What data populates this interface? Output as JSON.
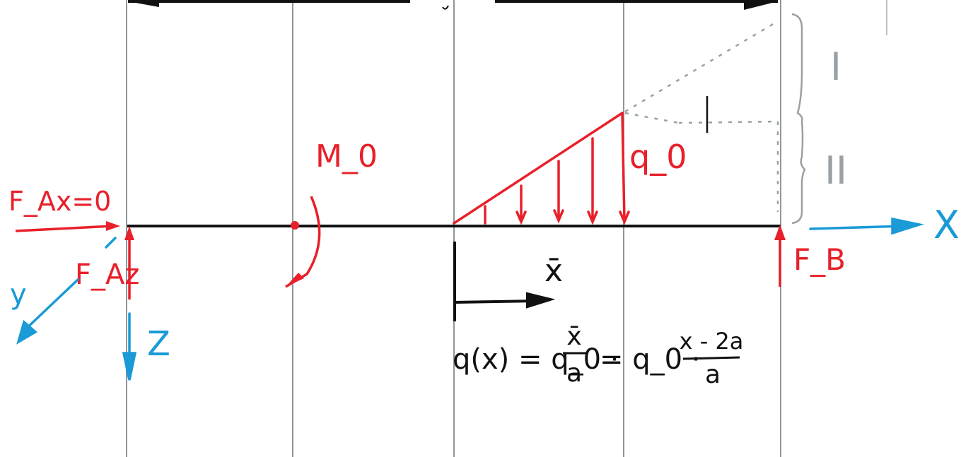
{
  "colors": {
    "load": "#e8202a",
    "axes": "#1a9ad6",
    "beam": "#111111",
    "grid": "#8e969b",
    "annot": "#9aa0a4"
  },
  "forces": {
    "fax": "F_Ax=0",
    "faz": "F_Az",
    "fb": "F_B",
    "moment": "M_0",
    "q0": "q_0"
  },
  "axes": {
    "x": "X",
    "y": "y",
    "z": "Z",
    "xbar": "x̄"
  },
  "regions": {
    "one": "I",
    "two": "II"
  },
  "formula": {
    "lhs": "q(x) = q_0 ·",
    "frac1_num": "x̄",
    "frac1_den": "a",
    "mid": "= q_0 ·",
    "frac2_num": "x - 2a",
    "frac2_den": "a"
  }
}
